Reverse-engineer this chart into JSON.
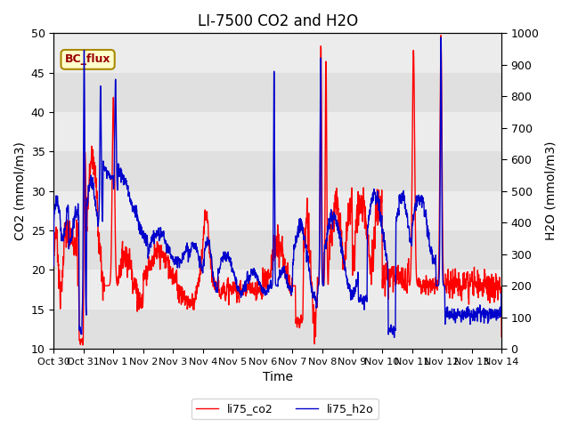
{
  "title": "LI-7500 CO2 and H2O",
  "xlabel": "Time",
  "ylabel_left": "CO2 (mmol/m3)",
  "ylabel_right": "H2O (mmol/m3)",
  "ylim_left": [
    10,
    50
  ],
  "ylim_right": [
    0,
    1000
  ],
  "yticks_left": [
    10,
    15,
    20,
    25,
    30,
    35,
    40,
    45,
    50
  ],
  "yticks_right": [
    0,
    100,
    200,
    300,
    400,
    500,
    600,
    700,
    800,
    900,
    1000
  ],
  "xtick_labels": [
    "Oct 30",
    "Oct 31",
    "Nov 1",
    "Nov 2",
    "Nov 3",
    "Nov 4",
    "Nov 5",
    "Nov 6",
    "Nov 7",
    "Nov 8",
    "Nov 9",
    "Nov 10",
    "Nov 11",
    "Nov 12",
    "Nov 13",
    "Nov 14"
  ],
  "co2_color": "#ff0000",
  "h2o_color": "#0000cc",
  "fig_bg_color": "#ffffff",
  "plot_bg_color": "#e8e8e8",
  "legend_label_co2": "li75_co2",
  "legend_label_h2o": "li75_h2o",
  "watermark_text": "BC_flux",
  "watermark_bg": "#ffffcc",
  "watermark_border": "#aa8800",
  "title_fontsize": 12,
  "axis_fontsize": 10,
  "tick_fontsize": 9,
  "line_width": 1.0,
  "n_points": 3000
}
